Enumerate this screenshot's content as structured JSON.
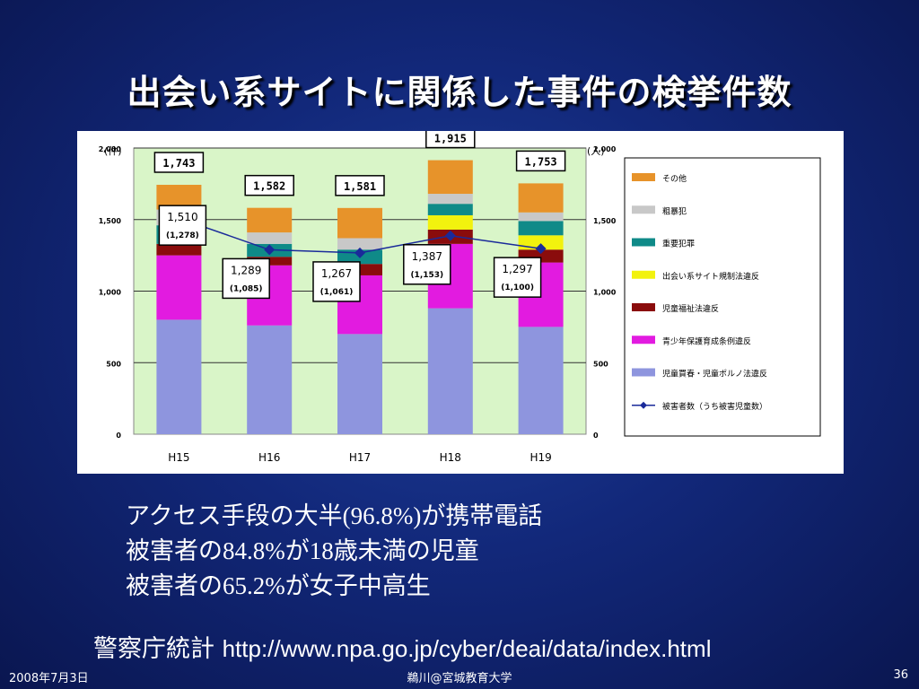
{
  "slide": {
    "title": "出会い系サイトに関係した事件の検挙件数",
    "bullets": [
      {
        "pre": "アクセス手段の大半",
        "num": "(96.8%)",
        "post": "が携帯電話"
      },
      {
        "pre": "被害者の",
        "num": "84.8%",
        "mid": "が",
        "num2": "18",
        "post": "歳未満の児童"
      },
      {
        "pre": "被害者の",
        "num": "65.2%",
        "post": "が女子中高生"
      }
    ],
    "source_label": "警察庁統計",
    "source_url": "http://www.npa.go.jp/cyber/deai/data/index.html",
    "footer_date": "2008年7月3日",
    "footer_author": "鵜川@宮城教育大学",
    "page_number": "36"
  },
  "chart_data": {
    "type": "bar",
    "stacked": true,
    "categories": [
      "H15",
      "H16",
      "H17",
      "H18",
      "H19"
    ],
    "y_left_unit": "(件)",
    "y_right_unit": "(人)",
    "ylim": [
      0,
      2000
    ],
    "yticks": [
      0,
      500,
      1000,
      1500,
      2000
    ],
    "ytick_labels": [
      "0",
      "500",
      "1,000",
      "1,500",
      "2,000"
    ],
    "grid": true,
    "legend_position": "right",
    "totals": [
      "1,743",
      "1,582",
      "1,581",
      "1,915",
      "1,753"
    ],
    "totals_values": [
      1743,
      1582,
      1581,
      1915,
      1753
    ],
    "series": [
      {
        "name": "児童買春・児童ポルノ法違反",
        "color": "#8e95de",
        "values": [
          800,
          760,
          700,
          880,
          750
        ]
      },
      {
        "name": "青少年保護育成条例違反",
        "color": "#e21be0",
        "values": [
          450,
          420,
          410,
          450,
          450
        ]
      },
      {
        "name": "児童福祉法違反",
        "color": "#8a0c0c",
        "values": [
          80,
          60,
          80,
          100,
          90
        ]
      },
      {
        "name": "出会い系サイト規制法違反",
        "color": "#f2f20e",
        "values": [
          0,
          0,
          0,
          100,
          100
        ]
      },
      {
        "name": "重要犯罪",
        "color": "#0f8a88",
        "values": [
          130,
          90,
          100,
          80,
          100
        ]
      },
      {
        "name": "粗暴犯",
        "color": "#c8c8c8",
        "values": [
          110,
          80,
          80,
          70,
          60
        ]
      },
      {
        "name": "その他",
        "color": "#e7932a",
        "values": [
          173,
          172,
          211,
          235,
          203
        ]
      }
    ],
    "line_series": {
      "name": "被害者数（うち被害児童数）",
      "color": "#1a2a9a",
      "values": [
        1510,
        1289,
        1267,
        1387,
        1297
      ],
      "labels": [
        "1,510",
        "1,289",
        "1,267",
        "1,387",
        "1,297"
      ],
      "child_labels": [
        "(1,278)",
        "(1,085)",
        "(1,061)",
        "(1,153)",
        "(1,100)"
      ]
    }
  }
}
